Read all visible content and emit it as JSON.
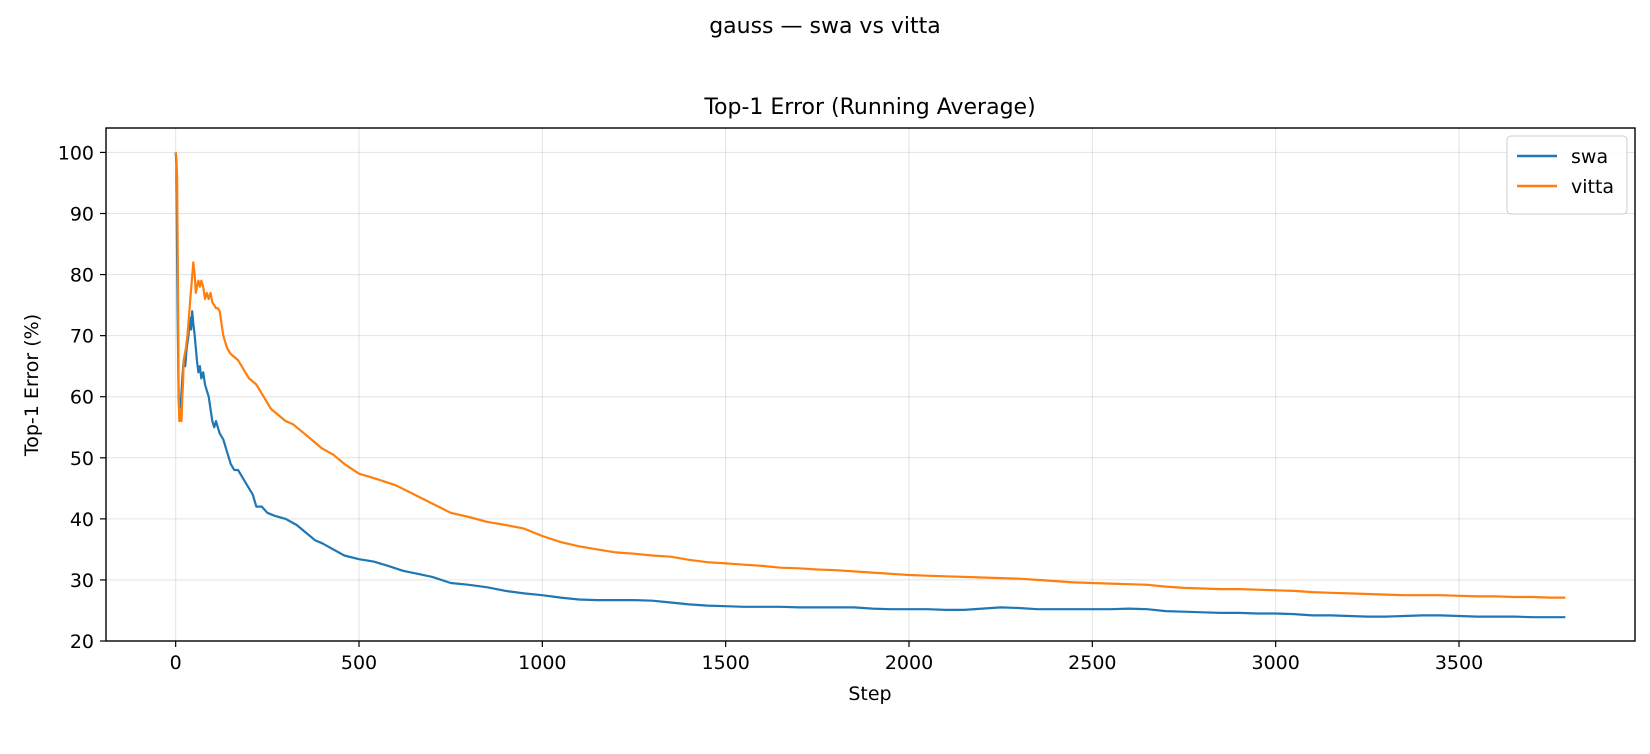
{
  "suptitle": "gauss — swa vs vitta",
  "chart_data": {
    "type": "line",
    "title": "Top-1 Error (Running Average)",
    "xlabel": "Step",
    "ylabel": "Top-1 Error (%)",
    "xlim": [
      -190,
      3980
    ],
    "ylim": [
      20,
      104
    ],
    "xticks": [
      0,
      500,
      1000,
      1500,
      2000,
      2500,
      3000,
      3500
    ],
    "yticks": [
      20,
      30,
      40,
      50,
      60,
      70,
      80,
      90,
      100
    ],
    "grid": true,
    "legend_position": "top-right",
    "series": [
      {
        "name": "swa",
        "color": "#1f77b4",
        "points": [
          [
            0,
            100
          ],
          [
            2,
            98
          ],
          [
            4,
            83
          ],
          [
            6,
            70
          ],
          [
            8,
            60
          ],
          [
            10,
            57
          ],
          [
            12,
            58
          ],
          [
            15,
            60
          ],
          [
            18,
            63
          ],
          [
            22,
            66
          ],
          [
            26,
            65
          ],
          [
            30,
            68
          ],
          [
            35,
            70
          ],
          [
            38,
            73
          ],
          [
            42,
            71
          ],
          [
            45,
            74
          ],
          [
            48,
            72
          ],
          [
            52,
            70
          ],
          [
            55,
            68
          ],
          [
            58,
            66
          ],
          [
            62,
            64
          ],
          [
            66,
            65
          ],
          [
            70,
            63
          ],
          [
            75,
            64
          ],
          [
            80,
            62
          ],
          [
            85,
            61
          ],
          [
            90,
            60
          ],
          [
            95,
            58
          ],
          [
            100,
            56
          ],
          [
            105,
            55
          ],
          [
            110,
            56
          ],
          [
            115,
            55
          ],
          [
            120,
            54
          ],
          [
            130,
            53
          ],
          [
            140,
            51
          ],
          [
            150,
            49
          ],
          [
            160,
            48
          ],
          [
            170,
            48
          ],
          [
            180,
            47
          ],
          [
            190,
            46
          ],
          [
            200,
            45
          ],
          [
            210,
            44
          ],
          [
            220,
            42
          ],
          [
            235,
            42
          ],
          [
            250,
            41
          ],
          [
            270,
            40.5
          ],
          [
            300,
            40
          ],
          [
            330,
            39
          ],
          [
            360,
            37.5
          ],
          [
            380,
            36.5
          ],
          [
            400,
            36
          ],
          [
            430,
            35
          ],
          [
            460,
            34
          ],
          [
            500,
            33.4
          ],
          [
            540,
            33
          ],
          [
            580,
            32.3
          ],
          [
            620,
            31.5
          ],
          [
            660,
            31
          ],
          [
            700,
            30.5
          ],
          [
            750,
            29.5
          ],
          [
            800,
            29.2
          ],
          [
            850,
            28.8
          ],
          [
            900,
            28.2
          ],
          [
            950,
            27.8
          ],
          [
            1000,
            27.5
          ],
          [
            1050,
            27.1
          ],
          [
            1100,
            26.8
          ],
          [
            1150,
            26.7
          ],
          [
            1200,
            26.7
          ],
          [
            1250,
            26.7
          ],
          [
            1300,
            26.6
          ],
          [
            1350,
            26.3
          ],
          [
            1400,
            26
          ],
          [
            1450,
            25.8
          ],
          [
            1500,
            25.7
          ],
          [
            1550,
            25.6
          ],
          [
            1600,
            25.6
          ],
          [
            1650,
            25.6
          ],
          [
            1700,
            25.5
          ],
          [
            1750,
            25.5
          ],
          [
            1800,
            25.5
          ],
          [
            1850,
            25.5
          ],
          [
            1900,
            25.3
          ],
          [
            1950,
            25.2
          ],
          [
            2000,
            25.2
          ],
          [
            2050,
            25.2
          ],
          [
            2100,
            25.1
          ],
          [
            2150,
            25.1
          ],
          [
            2200,
            25.3
          ],
          [
            2250,
            25.5
          ],
          [
            2300,
            25.4
          ],
          [
            2350,
            25.2
          ],
          [
            2400,
            25.2
          ],
          [
            2450,
            25.2
          ],
          [
            2500,
            25.2
          ],
          [
            2550,
            25.2
          ],
          [
            2600,
            25.3
          ],
          [
            2650,
            25.2
          ],
          [
            2700,
            24.9
          ],
          [
            2750,
            24.8
          ],
          [
            2800,
            24.7
          ],
          [
            2850,
            24.6
          ],
          [
            2900,
            24.6
          ],
          [
            2950,
            24.5
          ],
          [
            3000,
            24.5
          ],
          [
            3050,
            24.4
          ],
          [
            3100,
            24.2
          ],
          [
            3150,
            24.2
          ],
          [
            3200,
            24.1
          ],
          [
            3250,
            24
          ],
          [
            3300,
            24
          ],
          [
            3350,
            24.1
          ],
          [
            3400,
            24.2
          ],
          [
            3450,
            24.2
          ],
          [
            3500,
            24.1
          ],
          [
            3550,
            24
          ],
          [
            3600,
            24
          ],
          [
            3650,
            24
          ],
          [
            3700,
            23.9
          ],
          [
            3750,
            23.9
          ],
          [
            3790,
            23.9
          ]
        ]
      },
      {
        "name": "vitta",
        "color": "#ff7f0e",
        "points": [
          [
            0,
            100
          ],
          [
            2,
            99
          ],
          [
            4,
            96
          ],
          [
            6,
            80
          ],
          [
            8,
            62
          ],
          [
            10,
            56
          ],
          [
            12,
            57
          ],
          [
            14,
            58
          ],
          [
            16,
            56
          ],
          [
            18,
            60
          ],
          [
            20,
            62
          ],
          [
            22,
            66
          ],
          [
            25,
            67
          ],
          [
            28,
            68
          ],
          [
            32,
            70
          ],
          [
            36,
            73
          ],
          [
            40,
            76
          ],
          [
            44,
            79
          ],
          [
            48,
            82
          ],
          [
            52,
            80
          ],
          [
            55,
            77
          ],
          [
            58,
            78
          ],
          [
            62,
            79
          ],
          [
            66,
            78
          ],
          [
            70,
            79
          ],
          [
            75,
            78
          ],
          [
            80,
            76
          ],
          [
            85,
            77
          ],
          [
            90,
            76
          ],
          [
            95,
            77
          ],
          [
            100,
            75.5
          ],
          [
            105,
            75
          ],
          [
            110,
            74.5
          ],
          [
            115,
            74.5
          ],
          [
            120,
            74
          ],
          [
            125,
            72
          ],
          [
            130,
            70
          ],
          [
            140,
            68
          ],
          [
            150,
            67
          ],
          [
            160,
            66.5
          ],
          [
            170,
            66
          ],
          [
            180,
            65
          ],
          [
            190,
            64
          ],
          [
            200,
            63
          ],
          [
            210,
            62.5
          ],
          [
            220,
            62
          ],
          [
            240,
            60
          ],
          [
            260,
            58
          ],
          [
            280,
            57
          ],
          [
            300,
            56
          ],
          [
            320,
            55.5
          ],
          [
            340,
            54.5
          ],
          [
            360,
            53.5
          ],
          [
            380,
            52.5
          ],
          [
            400,
            51.5
          ],
          [
            430,
            50.5
          ],
          [
            460,
            49
          ],
          [
            500,
            47.4
          ],
          [
            550,
            46.5
          ],
          [
            600,
            45.5
          ],
          [
            650,
            44
          ],
          [
            700,
            42.5
          ],
          [
            750,
            41
          ],
          [
            800,
            40.3
          ],
          [
            850,
            39.5
          ],
          [
            900,
            39
          ],
          [
            950,
            38.4
          ],
          [
            1000,
            37.2
          ],
          [
            1050,
            36.2
          ],
          [
            1100,
            35.5
          ],
          [
            1150,
            35
          ],
          [
            1200,
            34.5
          ],
          [
            1250,
            34.3
          ],
          [
            1300,
            34
          ],
          [
            1350,
            33.8
          ],
          [
            1400,
            33.3
          ],
          [
            1450,
            32.9
          ],
          [
            1500,
            32.7
          ],
          [
            1550,
            32.5
          ],
          [
            1600,
            32.3
          ],
          [
            1650,
            32
          ],
          [
            1700,
            31.9
          ],
          [
            1750,
            31.7
          ],
          [
            1800,
            31.6
          ],
          [
            1850,
            31.4
          ],
          [
            1900,
            31.2
          ],
          [
            1950,
            31
          ],
          [
            2000,
            30.8
          ],
          [
            2050,
            30.7
          ],
          [
            2100,
            30.6
          ],
          [
            2150,
            30.5
          ],
          [
            2200,
            30.4
          ],
          [
            2250,
            30.3
          ],
          [
            2300,
            30.2
          ],
          [
            2350,
            30
          ],
          [
            2400,
            29.8
          ],
          [
            2450,
            29.6
          ],
          [
            2500,
            29.5
          ],
          [
            2550,
            29.4
          ],
          [
            2600,
            29.3
          ],
          [
            2650,
            29.2
          ],
          [
            2700,
            28.9
          ],
          [
            2750,
            28.7
          ],
          [
            2800,
            28.6
          ],
          [
            2850,
            28.5
          ],
          [
            2900,
            28.5
          ],
          [
            2950,
            28.4
          ],
          [
            3000,
            28.3
          ],
          [
            3050,
            28.2
          ],
          [
            3100,
            28
          ],
          [
            3150,
            27.9
          ],
          [
            3200,
            27.8
          ],
          [
            3250,
            27.7
          ],
          [
            3300,
            27.6
          ],
          [
            3350,
            27.5
          ],
          [
            3400,
            27.5
          ],
          [
            3450,
            27.5
          ],
          [
            3500,
            27.4
          ],
          [
            3550,
            27.3
          ],
          [
            3600,
            27.3
          ],
          [
            3650,
            27.2
          ],
          [
            3700,
            27.2
          ],
          [
            3750,
            27.1
          ],
          [
            3790,
            27.1
          ]
        ]
      }
    ]
  }
}
